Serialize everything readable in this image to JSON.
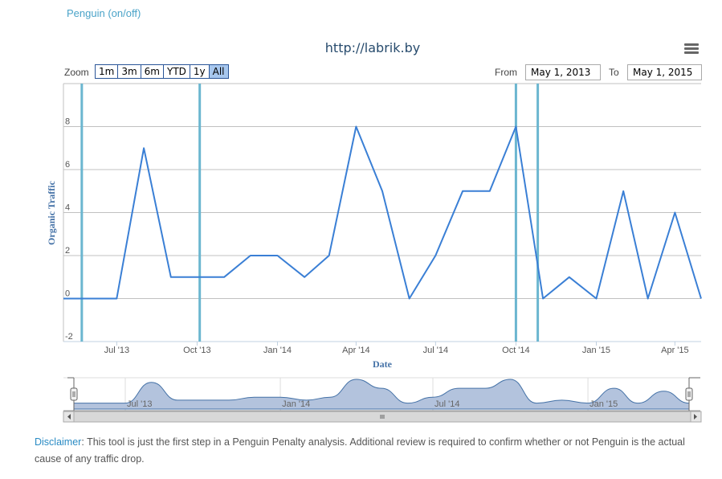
{
  "toggle_link": "Penguin (on/off)",
  "header": {
    "title": "http://labrik.by",
    "menu_icon": "hamburger-menu-icon"
  },
  "zoom": {
    "label": "Zoom",
    "buttons": [
      "1m",
      "3m",
      "6m",
      "YTD",
      "1y",
      "All"
    ],
    "active": "All"
  },
  "range": {
    "from_label": "From",
    "from_value": "May 1, 2013",
    "to_label": "To",
    "to_value": "May 1, 2015"
  },
  "colors": {
    "line": "#3a7fd5",
    "penguin_lines": "#6bb6d0",
    "navigator_fill": "#b3c3dd",
    "navigator_line": "#4572a7",
    "axis_title": "#4572a7"
  },
  "chart_data": {
    "type": "line",
    "title": "http://labrik.by",
    "xlabel": "Date",
    "ylabel": "Organic Traffic",
    "ylim": [
      -2,
      10
    ],
    "yticks": [
      -2,
      0,
      2,
      4,
      6,
      8
    ],
    "xticks": [
      "Jul '13",
      "Oct '13",
      "Jan '14",
      "Apr '14",
      "Jul '14",
      "Oct '14",
      "Jan '15",
      "Apr '15"
    ],
    "xtick_dates": [
      "2013-07-01",
      "2013-10-01",
      "2014-01-01",
      "2014-04-01",
      "2014-07-01",
      "2014-10-01",
      "2015-01-01",
      "2015-04-01"
    ],
    "xrange": [
      "2013-05-01",
      "2015-05-01"
    ],
    "grid": true,
    "series": [
      {
        "x": [
          "2013-05-01",
          "2013-06-01",
          "2013-07-01",
          "2013-08-01",
          "2013-09-01",
          "2013-10-01",
          "2013-11-01",
          "2013-12-01",
          "2014-01-01",
          "2014-02-01",
          "2014-03-01",
          "2014-04-01",
          "2014-05-01",
          "2014-06-01",
          "2014-07-01",
          "2014-08-01",
          "2014-09-01",
          "2014-10-01",
          "2014-11-01",
          "2014-12-01",
          "2015-01-01",
          "2015-02-01",
          "2015-03-01",
          "2015-04-01",
          "2015-05-01"
        ],
        "y": [
          0,
          0,
          0,
          7,
          1,
          1,
          1,
          2,
          2,
          1,
          2,
          8,
          5,
          0,
          2,
          5,
          5,
          8,
          0,
          1,
          0,
          5,
          0,
          4,
          0
        ]
      }
    ],
    "penguin_updates": [
      "2013-05-22",
      "2013-10-04",
      "2014-10-01",
      "2014-10-26"
    ],
    "navigator_labels": [
      "Jul '13",
      "Jan '14",
      "Jul '14",
      "Jan '15"
    ],
    "navigator_dates": [
      "2013-07-01",
      "2014-01-01",
      "2014-07-01",
      "2015-01-01"
    ]
  },
  "disclaimer": {
    "label": "Disclaimer",
    "text": ": This tool is just the first step in a Penguin Penalty analysis. Additional review is required to confirm whether or not Penguin is the actual cause of any traffic drop."
  }
}
